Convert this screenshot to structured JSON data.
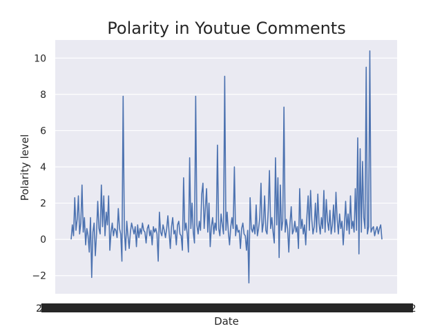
{
  "chart_data": {
    "type": "line",
    "title": "Polarity in Youtue Comments",
    "xlabel": "Date",
    "ylabel": "Polarity level",
    "ylim": [
      -3,
      11
    ],
    "yticks": [
      -2,
      0,
      2,
      4,
      6,
      8,
      10
    ],
    "grid": true,
    "background": "#eaeaf2",
    "line_color": "#4c72b0",
    "xtick_labels_note": "overlapping unreadable date labels",
    "series": [
      {
        "values": [
          0.0,
          0.8,
          0.2,
          2.3,
          0.5,
          1.1,
          2.4,
          0.3,
          0.9,
          3.0,
          0.4,
          1.2,
          -0.3,
          0.6,
          0.2,
          -0.7,
          1.2,
          -2.1,
          0.4,
          0.9,
          -0.9,
          0.3,
          2.1,
          0.6,
          0.3,
          3.0,
          0.7,
          2.4,
          0.2,
          1.5,
          0.8,
          2.4,
          -0.6,
          0.4,
          0.9,
          0.2,
          0.6,
          0.5,
          0.1,
          1.7,
          0.6,
          0.3,
          -1.2,
          7.9,
          0.5,
          -0.6,
          1.0,
          0.2,
          -0.5,
          0.4,
          0.9,
          0.6,
          0.3,
          0.7,
          -0.4,
          0.8,
          0.1,
          0.6,
          0.3,
          0.9,
          0.5,
          0.4,
          -0.2,
          0.6,
          0.8,
          0.2,
          0.5,
          -0.3,
          0.7,
          0.4,
          0.6,
          0.3,
          -1.2,
          1.5,
          0.4,
          0.2,
          0.8,
          0.5,
          0.1,
          0.6,
          1.3,
          0.4,
          -0.5,
          0.7,
          1.2,
          0.3,
          0.5,
          -0.3,
          0.8,
          1.0,
          0.3,
          0.2,
          -0.6,
          3.4,
          0.5,
          0.9,
          0.3,
          -0.7,
          4.5,
          0.6,
          2.0,
          0.4,
          -0.2,
          7.9,
          0.8,
          0.3,
          1.0,
          0.5,
          2.5,
          3.1,
          0.6,
          1.7,
          2.8,
          0.4,
          2.0,
          -0.4,
          0.7,
          1.2,
          0.3,
          0.9,
          0.5,
          5.2,
          0.6,
          0.2,
          1.4,
          0.8,
          0.3,
          9.0,
          0.5,
          1.5,
          0.4,
          -0.3,
          0.7,
          1.2,
          0.6,
          4.0,
          0.2,
          0.8,
          0.4,
          0.5,
          -0.5,
          0.6,
          0.9,
          0.3,
          0.2,
          -0.6,
          0.5,
          -2.4,
          2.3,
          0.6,
          0.4,
          0.8,
          0.3,
          1.9,
          0.2,
          0.6,
          1.2,
          3.1,
          0.4,
          0.9,
          2.4,
          0.5,
          0.3,
          1.6,
          3.8,
          0.6,
          1.2,
          0.4,
          -0.2,
          4.5,
          0.8,
          3.4,
          -1.0,
          3.0,
          0.5,
          1.0,
          7.3,
          0.4,
          1.1,
          0.6,
          -0.7,
          0.9,
          1.8,
          0.3,
          0.5,
          1.0,
          0.4,
          0.7,
          -0.5,
          2.8,
          0.6,
          1.1,
          0.3,
          0.8,
          -0.3,
          1.3,
          2.4,
          0.5,
          2.7,
          1.1,
          0.3,
          0.7,
          2.0,
          0.4,
          2.5,
          0.9,
          0.3,
          1.2,
          0.6,
          2.7,
          0.4,
          2.2,
          1.0,
          0.5,
          1.6,
          0.3,
          0.8,
          1.9,
          0.4,
          2.6,
          1.1,
          0.3,
          1.4,
          0.6,
          1.0,
          -0.3,
          0.8,
          2.1,
          0.5,
          1.4,
          0.3,
          2.4,
          0.6,
          1.0,
          0.4,
          2.8,
          0.5,
          5.6,
          -0.8,
          5.0,
          0.4,
          4.3,
          1.2,
          0.6,
          9.5,
          0.3,
          0.7,
          10.4,
          0.4,
          0.6,
          0.7,
          0.2,
          0.5,
          0.7,
          0.3,
          0.6,
          0.8,
          0.0
        ]
      }
    ]
  }
}
